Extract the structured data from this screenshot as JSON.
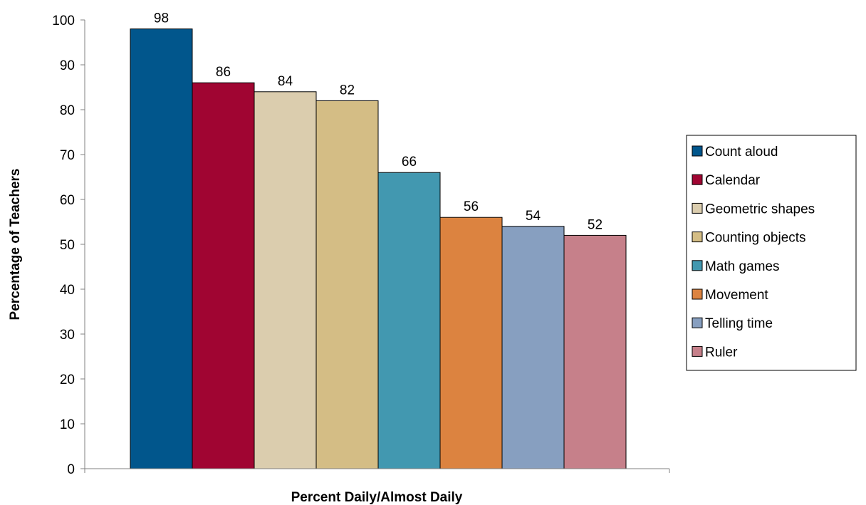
{
  "chart_data": {
    "type": "bar",
    "title": "",
    "xlabel": "Percent Daily/Almost Daily",
    "ylabel": "Percentage of Teachers",
    "ylim": [
      0,
      100
    ],
    "yticks": [
      0,
      10,
      20,
      30,
      40,
      50,
      60,
      70,
      80,
      90,
      100
    ],
    "grid": false,
    "legend_position": "right",
    "series": [
      {
        "name": "Count aloud",
        "values": [
          98
        ],
        "color": "#01568C"
      },
      {
        "name": "Calendar",
        "values": [
          86
        ],
        "color": "#A00532"
      },
      {
        "name": "Geometric shapes",
        "values": [
          84
        ],
        "color": "#DBCDAE"
      },
      {
        "name": "Counting objects",
        "values": [
          82
        ],
        "color": "#D4BD85"
      },
      {
        "name": "Math games",
        "values": [
          66
        ],
        "color": "#4298B0"
      },
      {
        "name": "Movement",
        "values": [
          56
        ],
        "color": "#DC8340"
      },
      {
        "name": "Telling time",
        "values": [
          54
        ],
        "color": "#879FC0"
      },
      {
        "name": "Ruler",
        "values": [
          52
        ],
        "color": "#C6808A"
      }
    ]
  }
}
